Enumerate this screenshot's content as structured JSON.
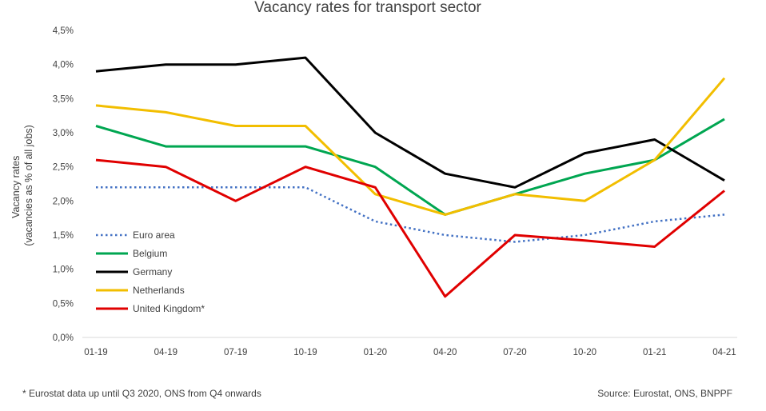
{
  "chart_data": {
    "type": "line",
    "title": "Vacancy rates for transport sector",
    "ylabel_line1": "Vacancy rates",
    "ylabel_line2": "(vacancies as % of all jobs)",
    "xlabel": "",
    "ylim": [
      0,
      4.5
    ],
    "y_ticks": [
      0,
      0.5,
      1.0,
      1.5,
      2.0,
      2.5,
      3.0,
      3.5,
      4.0,
      4.5
    ],
    "y_tick_labels": [
      "0,0%",
      "0,5%",
      "1,0%",
      "1,5%",
      "2,0%",
      "2,5%",
      "3,0%",
      "3,5%",
      "4,0%",
      "4,5%"
    ],
    "x": [
      "01-19",
      "04-19",
      "07-19",
      "10-19",
      "01-20",
      "04-20",
      "07-20",
      "10-20",
      "01-21",
      "04-21"
    ],
    "grid": false,
    "legend_position": "left",
    "series": [
      {
        "name": "Euro area",
        "color": "#4472C4",
        "style": "dotted",
        "values": [
          2.2,
          2.2,
          2.2,
          2.2,
          1.7,
          1.5,
          1.4,
          1.5,
          1.7,
          1.8
        ]
      },
      {
        "name": "Belgium",
        "color": "#00A651",
        "style": "solid",
        "values": [
          3.1,
          2.8,
          2.8,
          2.8,
          2.5,
          1.8,
          2.1,
          2.4,
          2.6,
          3.2
        ]
      },
      {
        "name": "Germany",
        "color": "#000000",
        "style": "solid",
        "values": [
          3.9,
          4.0,
          4.0,
          4.1,
          3.0,
          2.4,
          2.2,
          2.7,
          2.9,
          2.3
        ]
      },
      {
        "name": "Netherlands",
        "color": "#F2BE00",
        "style": "solid",
        "values": [
          3.4,
          3.3,
          3.1,
          3.1,
          2.1,
          1.8,
          2.1,
          2.0,
          2.6,
          3.8
        ]
      },
      {
        "name": "United Kingdom*",
        "color": "#E00000",
        "style": "solid",
        "values": [
          2.6,
          2.5,
          2.0,
          2.5,
          2.2,
          0.6,
          1.5,
          1.42,
          1.33,
          2.15
        ]
      }
    ]
  },
  "footnote": "* Eurostat data up until Q3 2020, ONS from Q4 onwards",
  "source": "Source: Eurostat, ONS, BNPPF"
}
